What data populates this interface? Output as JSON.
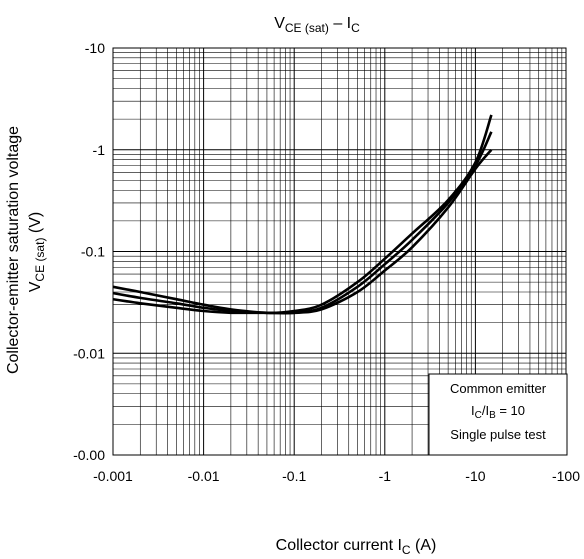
{
  "chart_data": {
    "type": "line",
    "title": {
      "main": "V",
      "sub1": "CE (sat)",
      "mid": " – I",
      "sub2": "C"
    },
    "xlabel": {
      "main": "Collector current   I",
      "sub": "C",
      "unit": "   (A)"
    },
    "ylabel": {
      "line1": "Collector-emitter saturation voltage",
      "main": "V",
      "sub": "CE (sat)",
      "unit": "   (V)"
    },
    "x_scale": "log",
    "y_scale": "log",
    "xlim": [
      -0.001,
      -100
    ],
    "ylim": [
      -0.001,
      -10
    ],
    "x_ticks": [
      {
        "value": -0.001,
        "label": "-0.001"
      },
      {
        "value": -0.01,
        "label": "-0.01"
      },
      {
        "value": -0.1,
        "label": "-0.1"
      },
      {
        "value": -1,
        "label": "-1"
      },
      {
        "value": -10,
        "label": "-10"
      },
      {
        "value": -100,
        "label": "-100"
      }
    ],
    "y_ticks": [
      {
        "value": -0.001,
        "label": "-0.00"
      },
      {
        "value": -0.01,
        "label": "-0.01"
      },
      {
        "value": -0.1,
        "label": "-0.1"
      },
      {
        "value": -1,
        "label": "-1"
      },
      {
        "value": -10,
        "label": "-10"
      }
    ],
    "grid": true,
    "annotation": {
      "line1": "Common emitter",
      "line2": {
        "a": "I",
        "a_sub": "C",
        "b": "/I",
        "b_sub": "B",
        "c": " = 10"
      },
      "line3": "Single pulse test"
    },
    "series": [
      {
        "x": [
          -0.001,
          -0.002,
          -0.005,
          -0.01,
          -0.02,
          -0.05,
          -0.1,
          -0.2,
          -0.5,
          -1,
          -2,
          -5,
          -10,
          -15
        ],
        "y": [
          -0.045,
          -0.04,
          -0.034,
          -0.03,
          -0.027,
          -0.025,
          -0.026,
          -0.03,
          -0.05,
          -0.085,
          -0.15,
          -0.32,
          -0.75,
          -2.2
        ]
      },
      {
        "x": [
          -0.001,
          -0.002,
          -0.005,
          -0.01,
          -0.02,
          -0.05,
          -0.1,
          -0.2,
          -0.5,
          -1,
          -2,
          -5,
          -10,
          -15
        ],
        "y": [
          -0.039,
          -0.035,
          -0.031,
          -0.028,
          -0.026,
          -0.025,
          -0.025,
          -0.028,
          -0.045,
          -0.075,
          -0.13,
          -0.3,
          -0.7,
          -1.5
        ]
      },
      {
        "x": [
          -0.001,
          -0.002,
          -0.005,
          -0.01,
          -0.02,
          -0.05,
          -0.1,
          -0.2,
          -0.5,
          -1,
          -2,
          -5,
          -10,
          -15
        ],
        "y": [
          -0.034,
          -0.031,
          -0.028,
          -0.026,
          -0.025,
          -0.025,
          -0.025,
          -0.027,
          -0.04,
          -0.065,
          -0.11,
          -0.27,
          -0.65,
          -1.0
        ]
      }
    ]
  }
}
